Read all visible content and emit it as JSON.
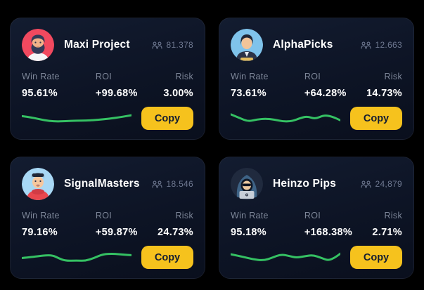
{
  "ui": {
    "win_rate_label": "Win Rate",
    "roi_label": "ROI",
    "risk_label": "Risk",
    "copy_label": "Copy",
    "followers_icon": "users-icon"
  },
  "colors": {
    "page_bg": "#000000",
    "card_bg": "#0d1425",
    "accent_yellow": "#f6c21d",
    "sparkline_green": "#35c163",
    "label_gray": "#7d8698",
    "followers_gray": "#6e7890",
    "value_white": "#ffffff",
    "button_text": "#151e31"
  },
  "cards": [
    {
      "name": "Maxi Project",
      "followers": "81.378",
      "win_rate": "95.61%",
      "roi": "+99.68%",
      "risk": "3.00%",
      "avatar": "bearded-man-red-circle",
      "sparkline": [
        [
          0,
          0.34
        ],
        [
          9,
          0.42
        ],
        [
          20,
          0.6
        ],
        [
          30,
          0.68
        ],
        [
          40,
          0.66
        ],
        [
          50,
          0.62
        ],
        [
          60,
          0.62
        ],
        [
          70,
          0.57
        ],
        [
          80,
          0.5
        ],
        [
          90,
          0.4
        ],
        [
          100,
          0.28
        ]
      ]
    },
    {
      "name": "AlphaPicks",
      "followers": "12.663",
      "win_rate": "73.61%",
      "roi": "+64.28%",
      "risk": "14.73%",
      "avatar": "black-hair-man-blue-circle",
      "sparkline": [
        [
          0,
          0.22
        ],
        [
          8,
          0.45
        ],
        [
          16,
          0.68
        ],
        [
          24,
          0.55
        ],
        [
          32,
          0.5
        ],
        [
          40,
          0.56
        ],
        [
          48,
          0.68
        ],
        [
          56,
          0.66
        ],
        [
          64,
          0.45
        ],
        [
          70,
          0.35
        ],
        [
          77,
          0.52
        ],
        [
          85,
          0.28
        ],
        [
          92,
          0.35
        ],
        [
          100,
          0.6
        ]
      ]
    },
    {
      "name": "SignalMasters",
      "followers": "18.546",
      "win_rate": "79.16%",
      "roi": "+59.87%",
      "risk": "24.73%",
      "avatar": "red-hoodie-man-lightblue-circle",
      "sparkline": [
        [
          0,
          0.52
        ],
        [
          10,
          0.45
        ],
        [
          20,
          0.36
        ],
        [
          28,
          0.34
        ],
        [
          34,
          0.55
        ],
        [
          40,
          0.7
        ],
        [
          50,
          0.68
        ],
        [
          58,
          0.7
        ],
        [
          66,
          0.52
        ],
        [
          74,
          0.27
        ],
        [
          84,
          0.25
        ],
        [
          92,
          0.3
        ],
        [
          100,
          0.34
        ]
      ]
    },
    {
      "name": "Heinzo Pips",
      "followers": "24,879",
      "win_rate": "95.18%",
      "roi": "+168.38%",
      "risk": "2.71%",
      "avatar": "hooded-hacker-laptop-dark-circle",
      "sparkline": [
        [
          0,
          0.28
        ],
        [
          10,
          0.42
        ],
        [
          20,
          0.6
        ],
        [
          30,
          0.68
        ],
        [
          38,
          0.5
        ],
        [
          46,
          0.28
        ],
        [
          54,
          0.4
        ],
        [
          60,
          0.5
        ],
        [
          68,
          0.4
        ],
        [
          75,
          0.33
        ],
        [
          83,
          0.52
        ],
        [
          89,
          0.68
        ],
        [
          95,
          0.5
        ],
        [
          100,
          0.24
        ]
      ]
    }
  ]
}
